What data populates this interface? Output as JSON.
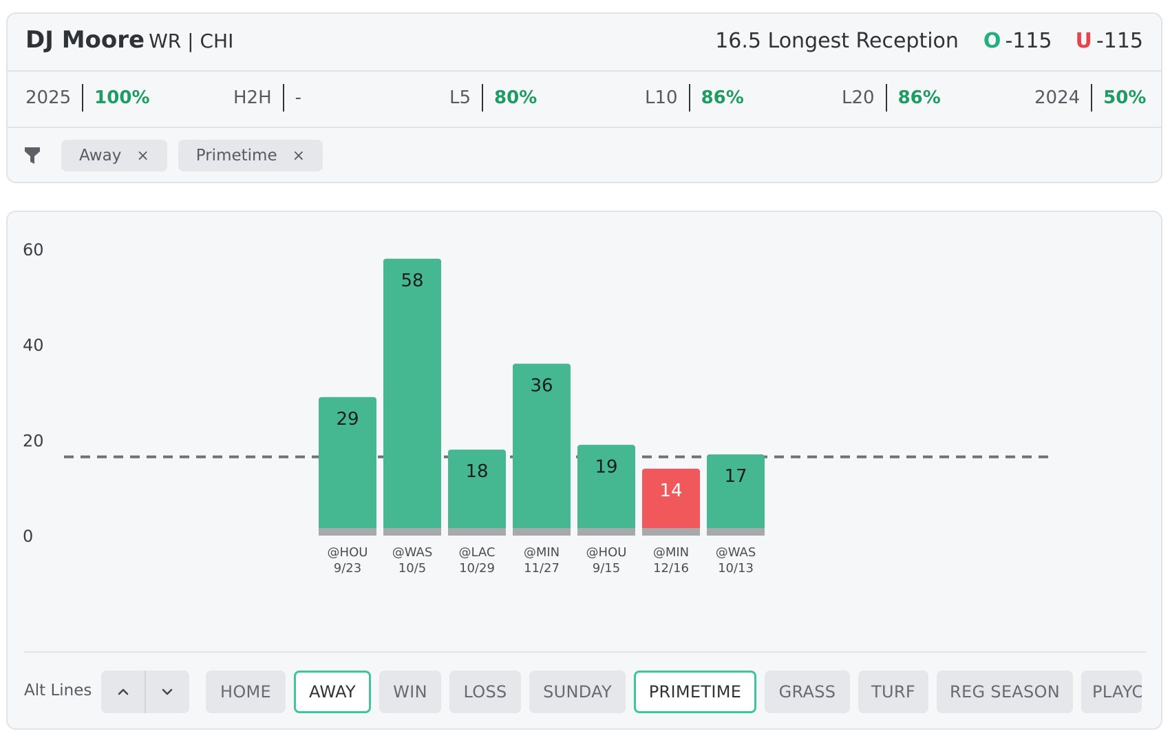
{
  "header": {
    "player_name": "DJ Moore",
    "position_team": "WR | CHI",
    "prop_line": "16.5 Longest Reception",
    "over_label": "O",
    "over_odds": "-115",
    "under_label": "U",
    "under_odds": "-115"
  },
  "stats": [
    {
      "label": "2025",
      "value": "100%"
    },
    {
      "label": "H2H",
      "value": "-"
    },
    {
      "label": "L5",
      "value": "80%"
    },
    {
      "label": "L10",
      "value": "86%"
    },
    {
      "label": "L20",
      "value": "86%"
    },
    {
      "label": "2024",
      "value": "50%"
    }
  ],
  "filters": {
    "chips": [
      {
        "label": "Away",
        "close": "×"
      },
      {
        "label": "Primetime",
        "close": "×"
      }
    ]
  },
  "chart_data": {
    "type": "bar",
    "title": "",
    "xlabel": "",
    "ylabel": "",
    "ylim": [
      0,
      60
    ],
    "yticks": [
      0,
      20,
      40,
      60
    ],
    "line_value": 16.5,
    "categories": [
      "@HOU 9/23",
      "@WAS 10/5",
      "@LAC 10/29",
      "@MIN 11/27",
      "@HOU 9/15",
      "@MIN 12/16",
      "@WAS 10/13"
    ],
    "opponents": [
      "@HOU",
      "@WAS",
      "@LAC",
      "@MIN",
      "@HOU",
      "@MIN",
      "@WAS"
    ],
    "dates": [
      "9/23",
      "10/5",
      "10/29",
      "11/27",
      "9/15",
      "12/16",
      "10/13"
    ],
    "values": [
      29,
      58,
      18,
      36,
      19,
      14,
      17
    ],
    "colors": {
      "over": "#46b891",
      "under": "#f0585b",
      "base": "#a7a9ac",
      "line": "#707376"
    }
  },
  "controls": {
    "alt_lines_label": "Alt Lines",
    "up_icon": "chevron-up-icon",
    "down_icon": "chevron-down-icon",
    "tags": [
      {
        "label": "HOME",
        "active": false
      },
      {
        "label": "AWAY",
        "active": true
      },
      {
        "label": "WIN",
        "active": false
      },
      {
        "label": "LOSS",
        "active": false
      },
      {
        "label": "SUNDAY",
        "active": false
      },
      {
        "label": "PRIMETIME",
        "active": true
      },
      {
        "label": "GRASS",
        "active": false
      },
      {
        "label": "TURF",
        "active": false
      },
      {
        "label": "REG SEASON",
        "active": false
      },
      {
        "label": "PLAYC",
        "active": false
      }
    ]
  }
}
